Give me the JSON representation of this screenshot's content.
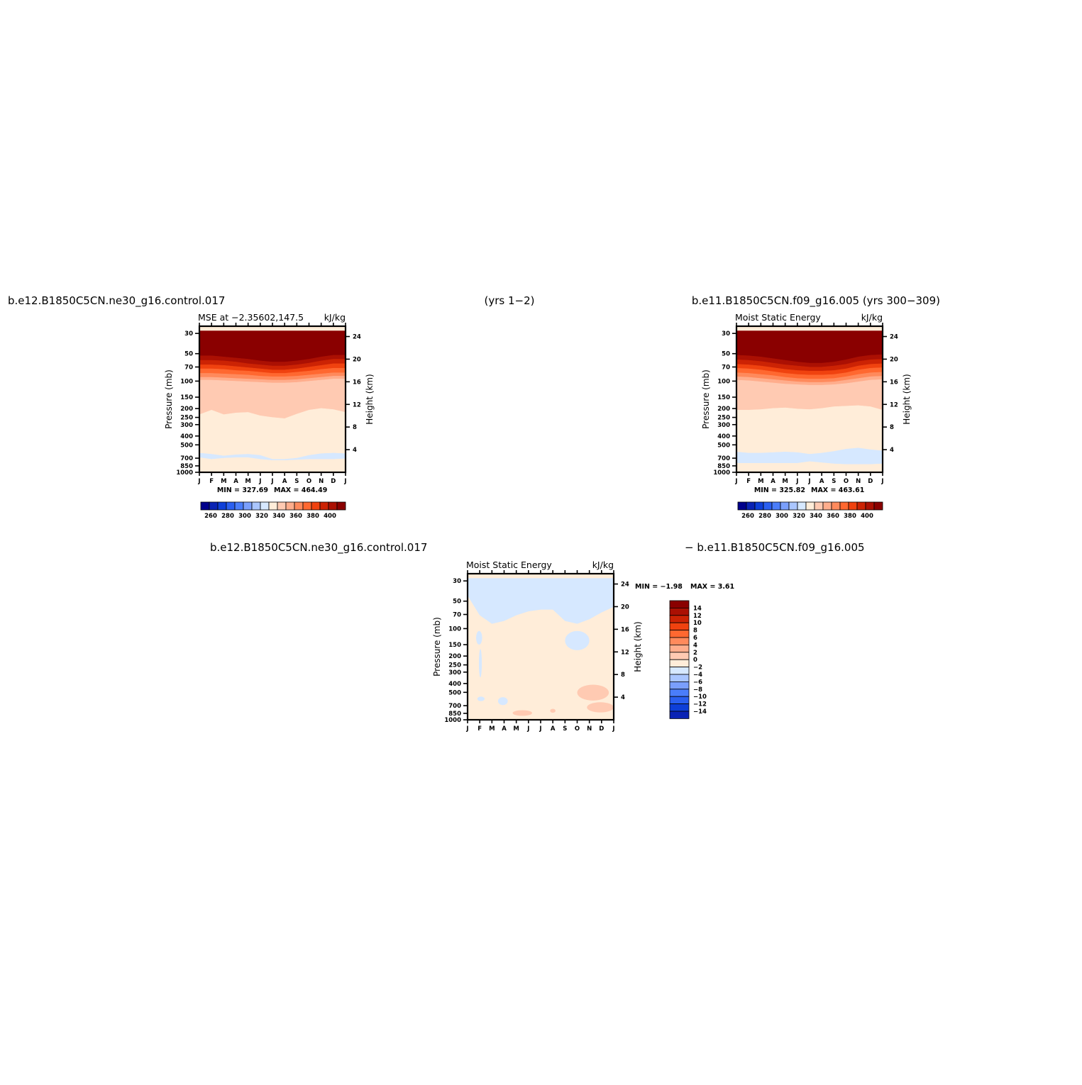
{
  "figure": {
    "top_left_title": "b.e12.B1850C5CN.ne30_g16.control.017",
    "top_center_title": "(yrs 1−2)",
    "top_right_title": "b.e11.B1850C5CN.f09_g16.005 (yrs 300−309)",
    "bottom_left_title": "b.e12.B1850C5CN.ne30_g16.control.017",
    "bottom_right_title": "− b.e11.B1850C5CN.f09_g16.005"
  },
  "chart_data": [
    {
      "type": "heatmap",
      "name": "panel-1",
      "title": "MSE at −2.35602,147.5",
      "units": "kJ/kg",
      "xlabel": "",
      "ylabel": "Pressure (mb)",
      "y2label": "Height (km)",
      "x_ticks": [
        "J",
        "F",
        "M",
        "A",
        "M",
        "J",
        "J",
        "A",
        "S",
        "O",
        "N",
        "D",
        "J"
      ],
      "y_ticks": [
        30,
        50,
        70,
        100,
        150,
        200,
        250,
        300,
        400,
        500,
        700,
        850,
        1000
      ],
      "y2_ticks": [
        4,
        8,
        12,
        16,
        20,
        24
      ],
      "y_scale": "log",
      "ylim": [
        1000,
        25
      ],
      "min_label": "MIN = 327.69",
      "max_label": "MAX = 464.49",
      "bands": [
        {
          "color": "#d6e8ff",
          "upper": [
            3.4,
            3.2,
            2.9,
            3.1,
            3.2,
            3.0,
            2.3,
            2.3,
            2.5,
            3.0,
            3.3,
            3.4,
            3.3
          ],
          "lower": [
            2.6,
            2.3,
            2.5,
            2.6,
            2.6,
            2.3,
            2.1,
            2.1,
            2.2,
            2.3,
            2.3,
            2.3,
            2.4
          ]
        },
        {
          "color": "#ffedd9",
          "upper": [
            10.2,
            11.0,
            10.2,
            10.5,
            10.6,
            10.0,
            9.7,
            9.5,
            10.3,
            11.0,
            11.3,
            11.1,
            10.6
          ]
        },
        {
          "color": "#ffcab2",
          "upper": [
            16.3,
            16.3,
            16.2,
            16.1,
            16.0,
            15.9,
            15.8,
            15.8,
            15.9,
            16.1,
            16.3,
            16.5,
            16.5
          ]
        },
        {
          "color": "#ffad8c",
          "upper": [
            16.8,
            16.8,
            16.7,
            16.6,
            16.5,
            16.4,
            16.3,
            16.3,
            16.4,
            16.6,
            16.8,
            17.0,
            17.0
          ]
        },
        {
          "color": "#ff8a5c",
          "upper": [
            17.5,
            17.5,
            17.4,
            17.3,
            17.2,
            17.0,
            16.9,
            16.9,
            17.0,
            17.2,
            17.4,
            17.6,
            17.6
          ]
        },
        {
          "color": "#ff6830",
          "upper": [
            18.3,
            18.3,
            18.2,
            18.0,
            17.9,
            17.7,
            17.5,
            17.5,
            17.7,
            17.9,
            18.2,
            18.4,
            18.4
          ]
        },
        {
          "color": "#f0420f",
          "upper": [
            19.0,
            19.0,
            18.9,
            18.7,
            18.5,
            18.3,
            18.1,
            18.1,
            18.3,
            18.6,
            18.9,
            19.2,
            19.2
          ]
        },
        {
          "color": "#cc2304",
          "upper": [
            19.8,
            19.8,
            19.7,
            19.5,
            19.2,
            19.0,
            18.8,
            18.8,
            19.0,
            19.3,
            19.7,
            20.0,
            20.0
          ]
        },
        {
          "color": "#ab1003",
          "upper": [
            20.6,
            20.6,
            20.4,
            20.2,
            20.0,
            19.7,
            19.5,
            19.5,
            19.7,
            20.0,
            20.4,
            20.7,
            20.7
          ]
        },
        {
          "color": "#8a0000",
          "upper": [
            25,
            25,
            25,
            25,
            25,
            25,
            25,
            25,
            25,
            25,
            25,
            25,
            25
          ]
        }
      ]
    },
    {
      "type": "heatmap",
      "name": "panel-2",
      "title": "Moist Static Energy",
      "units": "kJ/kg",
      "xlabel": "",
      "ylabel": "Pressure (mb)",
      "y2label": "Height (km)",
      "x_ticks": [
        "J",
        "F",
        "M",
        "A",
        "M",
        "J",
        "J",
        "A",
        "S",
        "O",
        "N",
        "D",
        "J"
      ],
      "y_ticks": [
        30,
        50,
        70,
        100,
        150,
        200,
        250,
        300,
        400,
        500,
        700,
        850,
        1000
      ],
      "y2_ticks": [
        4,
        8,
        12,
        16,
        20,
        24
      ],
      "y_scale": "log",
      "ylim": [
        1000,
        25
      ],
      "min_label": "MIN = 325.82",
      "max_label": "MAX = 463.61",
      "bands": [
        {
          "color": "#d6e8ff",
          "upper": [
            3.6,
            3.4,
            3.4,
            3.5,
            3.6,
            3.5,
            3.2,
            3.4,
            3.7,
            4.1,
            4.3,
            4.0,
            3.8
          ],
          "lower": [
            1.6,
            1.6,
            1.6,
            1.6,
            1.6,
            1.6,
            1.9,
            1.7,
            1.5,
            1.4,
            1.4,
            1.4,
            1.5
          ]
        },
        {
          "color": "#ffedd9",
          "upper": [
            11.0,
            11.0,
            11.1,
            11.3,
            11.4,
            11.2,
            11.1,
            11.3,
            11.6,
            11.7,
            11.8,
            11.6,
            11.0
          ]
        },
        {
          "color": "#ffcab2",
          "upper": [
            16.3,
            16.2,
            16.0,
            15.8,
            15.6,
            15.5,
            15.4,
            15.4,
            15.5,
            15.7,
            16.0,
            16.3,
            16.4
          ]
        },
        {
          "color": "#ffad8c",
          "upper": [
            16.9,
            16.8,
            16.6,
            16.4,
            16.2,
            16.0,
            15.9,
            15.9,
            16.0,
            16.3,
            16.6,
            16.9,
            17.0
          ]
        },
        {
          "color": "#ff8a5c",
          "upper": [
            17.6,
            17.5,
            17.3,
            17.1,
            16.8,
            16.6,
            16.5,
            16.5,
            16.6,
            16.9,
            17.3,
            17.6,
            17.7
          ]
        },
        {
          "color": "#ff6830",
          "upper": [
            18.4,
            18.3,
            18.1,
            17.8,
            17.5,
            17.3,
            17.2,
            17.2,
            17.3,
            17.6,
            18.1,
            18.4,
            18.5
          ]
        },
        {
          "color": "#f0420f",
          "upper": [
            19.1,
            19.0,
            18.8,
            18.5,
            18.2,
            18.0,
            17.9,
            17.9,
            18.0,
            18.3,
            18.8,
            19.1,
            19.2
          ]
        },
        {
          "color": "#cc2304",
          "upper": [
            19.9,
            19.8,
            19.6,
            19.3,
            19.0,
            18.8,
            18.6,
            18.6,
            18.8,
            19.1,
            19.6,
            19.9,
            20.0
          ]
        },
        {
          "color": "#ab1003",
          "upper": [
            20.7,
            20.6,
            20.4,
            20.1,
            19.8,
            19.5,
            19.3,
            19.3,
            19.5,
            19.9,
            20.4,
            20.7,
            20.8
          ]
        },
        {
          "color": "#8a0000",
          "upper": [
            25,
            25,
            25,
            25,
            25,
            25,
            25,
            25,
            25,
            25,
            25,
            25,
            25
          ]
        }
      ]
    },
    {
      "type": "heatmap",
      "name": "panel-3",
      "title": "Moist Static Energy",
      "units": "kJ/kg",
      "xlabel": "",
      "ylabel": "Pressure (mb)",
      "y2label": "Height (km)",
      "x_ticks": [
        "J",
        "F",
        "M",
        "A",
        "M",
        "J",
        "J",
        "A",
        "S",
        "O",
        "N",
        "D",
        "J"
      ],
      "y_ticks": [
        30,
        50,
        70,
        100,
        150,
        200,
        250,
        300,
        400,
        500,
        700,
        850,
        1000
      ],
      "y2_ticks": [
        4,
        8,
        12,
        16,
        20,
        24
      ],
      "y_scale": "log",
      "ylim": [
        1000,
        25
      ],
      "min_label": "MIN = −1.98",
      "max_label": "MAX = 3.61",
      "background": "#ffedd9",
      "bands": [
        {
          "color": "#d6e8ff",
          "upper": [
            25,
            25,
            25,
            25,
            25,
            25,
            25,
            25,
            25,
            25,
            25,
            25,
            25
          ],
          "lower": [
            22.0,
            18.5,
            17.0,
            17.5,
            18.5,
            19.2,
            19.5,
            19.5,
            17.5,
            17.0,
            17.8,
            19.0,
            20.0
          ]
        }
      ],
      "blobs": [
        {
          "color": "#d6e8ff",
          "x": 0.95,
          "z": 14.5,
          "rx": 0.25,
          "rz": 1.2
        },
        {
          "color": "#d6e8ff",
          "x": 1.05,
          "z": 10.0,
          "rx": 0.12,
          "rz": 2.5
        },
        {
          "color": "#d6e8ff",
          "x": 1.1,
          "z": 3.7,
          "rx": 0.3,
          "rz": 0.4
        },
        {
          "color": "#d6e8ff",
          "x": 2.9,
          "z": 3.3,
          "rx": 0.4,
          "rz": 0.7
        },
        {
          "color": "#d6e8ff",
          "x": 9.0,
          "z": 14.0,
          "rx": 1.0,
          "rz": 1.7
        },
        {
          "color": "#ffcab2",
          "x": 4.5,
          "z": 1.2,
          "rx": 0.8,
          "rz": 0.5
        },
        {
          "color": "#ffcab2",
          "x": 7.0,
          "z": 1.6,
          "rx": 0.22,
          "rz": 0.35
        },
        {
          "color": "#ffcab2",
          "x": 10.3,
          "z": 4.8,
          "rx": 1.3,
          "rz": 1.4
        },
        {
          "color": "#ffcab2",
          "x": 10.9,
          "z": 2.2,
          "rx": 1.1,
          "rz": 0.9
        }
      ]
    }
  ],
  "colorbars": {
    "horizontal": {
      "labels": [
        "260",
        "280",
        "300",
        "320",
        "340",
        "360",
        "380",
        "400"
      ],
      "colors": [
        "#00008b",
        "#0a23b4",
        "#0e3fd8",
        "#2a5ff0",
        "#4a7dfa",
        "#7a9ffc",
        "#aac6ff",
        "#d6e8ff",
        "#ffedd9",
        "#ffcab2",
        "#ffad8c",
        "#ff8a5c",
        "#ff6830",
        "#f0420f",
        "#cc2304",
        "#ab1003",
        "#8a0000"
      ]
    },
    "vertical": {
      "labels": [
        "14",
        "12",
        "10",
        "8",
        "6",
        "4",
        "2",
        "0",
        "−2",
        "−4",
        "−6",
        "−8",
        "−10",
        "−12",
        "−14"
      ],
      "colors": [
        "#8a0000",
        "#ab1003",
        "#cc2304",
        "#f0420f",
        "#ff6830",
        "#ff8a5c",
        "#ffad8c",
        "#ffcab2",
        "#ffedd9",
        "#d6e8ff",
        "#aac6ff",
        "#7a9ffc",
        "#4a7dfa",
        "#2a5ff0",
        "#0e3fd8",
        "#0a23b4"
      ]
    }
  }
}
